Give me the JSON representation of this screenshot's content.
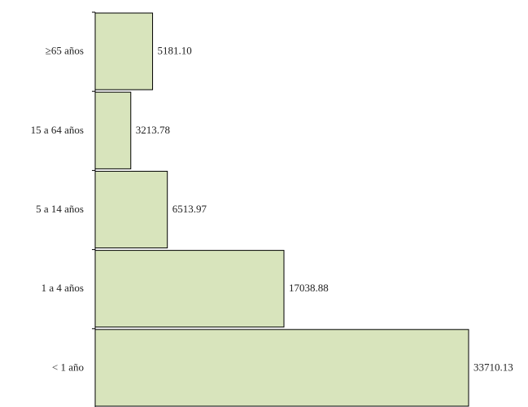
{
  "chart_data": {
    "type": "hbar",
    "categories": [
      "≥65 años",
      "15 a 64 años",
      "5 a 14 años",
      "1 a 4 años",
      "< 1 año"
    ],
    "values": [
      5181.1,
      3213.78,
      6513.97,
      17038.88,
      33710.13
    ],
    "value_labels": [
      "5181.10",
      "3213.78",
      "6513.97",
      "17038.88",
      "33710.13"
    ],
    "color": "#d8e4bc"
  }
}
